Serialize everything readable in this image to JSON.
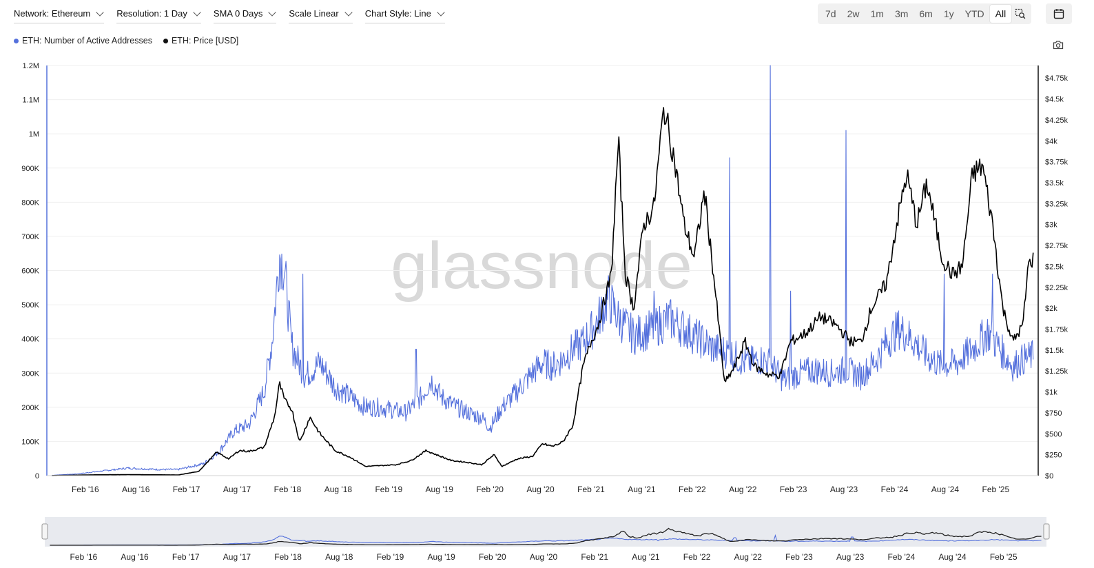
{
  "toolbar": {
    "network": "Network: Ethereum",
    "resolution": "Resolution: 1 Day",
    "sma": "SMA 0 Days",
    "scale": "Scale Linear",
    "style": "Chart Style: Line"
  },
  "range_buttons": [
    "7d",
    "2w",
    "1m",
    "3m",
    "6m",
    "1y",
    "YTD",
    "All"
  ],
  "active_range": "All",
  "icons": {
    "zoom": "zoom-select-icon",
    "calendar": "calendar-icon",
    "camera": "camera-icon"
  },
  "watermark": "glassnode",
  "chart_data": {
    "type": "line",
    "series": [
      {
        "name": "ETH: Number of Active Addresses",
        "color": "#5470dc",
        "axis": "left",
        "points": [
          [
            2015.75,
            1000
          ],
          [
            2016.0,
            5000
          ],
          [
            2016.2,
            12000
          ],
          [
            2016.5,
            22000
          ],
          [
            2016.8,
            18000
          ],
          [
            2017.0,
            18000
          ],
          [
            2017.25,
            35000
          ],
          [
            2017.4,
            70000
          ],
          [
            2017.55,
            130000
          ],
          [
            2017.7,
            150000
          ],
          [
            2017.85,
            250000
          ],
          [
            2017.93,
            400000
          ],
          [
            2018.0,
            650000
          ],
          [
            2018.05,
            600000
          ],
          [
            2018.12,
            380000
          ],
          [
            2018.25,
            290000
          ],
          [
            2018.4,
            330000
          ],
          [
            2018.55,
            260000
          ],
          [
            2018.7,
            230000
          ],
          [
            2018.85,
            200000
          ],
          [
            2019.0,
            200000
          ],
          [
            2019.15,
            190000
          ],
          [
            2019.25,
            185000
          ],
          [
            2019.4,
            230000
          ],
          [
            2019.5,
            280000
          ],
          [
            2019.6,
            230000
          ],
          [
            2019.75,
            200000
          ],
          [
            2019.9,
            180000
          ],
          [
            2020.0,
            170000
          ],
          [
            2020.08,
            140000
          ],
          [
            2020.2,
            200000
          ],
          [
            2020.3,
            230000
          ],
          [
            2020.5,
            300000
          ],
          [
            2020.6,
            330000
          ],
          [
            2020.7,
            320000
          ],
          [
            2020.8,
            340000
          ],
          [
            2020.9,
            370000
          ],
          [
            2021.0,
            390000
          ],
          [
            2021.12,
            440000
          ],
          [
            2021.25,
            520000
          ],
          [
            2021.35,
            460000
          ],
          [
            2021.5,
            410000
          ],
          [
            2021.7,
            430000
          ],
          [
            2021.85,
            460000
          ],
          [
            2022.0,
            430000
          ],
          [
            2022.15,
            400000
          ],
          [
            2022.3,
            370000
          ],
          [
            2022.45,
            360000
          ],
          [
            2022.6,
            330000
          ],
          [
            2022.75,
            340000
          ],
          [
            2022.85,
            330000
          ],
          [
            2022.95,
            290000
          ],
          [
            2023.0,
            280000
          ],
          [
            2023.15,
            300000
          ],
          [
            2023.3,
            310000
          ],
          [
            2023.45,
            300000
          ],
          [
            2023.6,
            310000
          ],
          [
            2023.75,
            290000
          ],
          [
            2023.9,
            340000
          ],
          [
            2024.0,
            390000
          ],
          [
            2024.12,
            430000
          ],
          [
            2024.25,
            400000
          ],
          [
            2024.4,
            350000
          ],
          [
            2024.55,
            320000
          ],
          [
            2024.7,
            330000
          ],
          [
            2024.85,
            370000
          ],
          [
            2025.0,
            420000
          ],
          [
            2025.1,
            380000
          ],
          [
            2025.25,
            320000
          ],
          [
            2025.35,
            340000
          ],
          [
            2025.45,
            350000
          ]
        ],
        "spikes": [
          [
            2018.23,
            590000
          ],
          [
            2019.35,
            370000
          ],
          [
            2021.7,
            540000
          ],
          [
            2022.45,
            930000
          ],
          [
            2022.85,
            1200000
          ],
          [
            2023.05,
            540000
          ],
          [
            2023.6,
            1010000
          ],
          [
            2024.57,
            590000
          ],
          [
            2025.05,
            590000
          ]
        ]
      },
      {
        "name": "ETH: Price [USD]",
        "color": "#000000",
        "axis": "right",
        "points": [
          [
            2015.75,
            1
          ],
          [
            2016.2,
            10
          ],
          [
            2016.5,
            12
          ],
          [
            2016.8,
            10
          ],
          [
            2017.0,
            8
          ],
          [
            2017.2,
            50
          ],
          [
            2017.38,
            280
          ],
          [
            2017.5,
            200
          ],
          [
            2017.6,
            300
          ],
          [
            2017.7,
            290
          ],
          [
            2017.85,
            340
          ],
          [
            2017.95,
            700
          ],
          [
            2018.0,
            1100
          ],
          [
            2018.05,
            900
          ],
          [
            2018.12,
            800
          ],
          [
            2018.2,
            400
          ],
          [
            2018.3,
            700
          ],
          [
            2018.4,
            500
          ],
          [
            2018.55,
            300
          ],
          [
            2018.7,
            220
          ],
          [
            2018.85,
            110
          ],
          [
            2019.0,
            120
          ],
          [
            2019.15,
            130
          ],
          [
            2019.3,
            180
          ],
          [
            2019.45,
            300
          ],
          [
            2019.55,
            250
          ],
          [
            2019.7,
            180
          ],
          [
            2019.85,
            160
          ],
          [
            2020.0,
            130
          ],
          [
            2020.12,
            250
          ],
          [
            2020.2,
            110
          ],
          [
            2020.35,
            200
          ],
          [
            2020.5,
            230
          ],
          [
            2020.6,
            380
          ],
          [
            2020.7,
            350
          ],
          [
            2020.8,
            400
          ],
          [
            2020.9,
            600
          ],
          [
            2021.0,
            1300
          ],
          [
            2021.08,
            1600
          ],
          [
            2021.15,
            1800
          ],
          [
            2021.28,
            2400
          ],
          [
            2021.35,
            4000
          ],
          [
            2021.42,
            2400
          ],
          [
            2021.5,
            2000
          ],
          [
            2021.6,
            3000
          ],
          [
            2021.7,
            3200
          ],
          [
            2021.8,
            4400
          ],
          [
            2021.9,
            3800
          ],
          [
            2022.0,
            3000
          ],
          [
            2022.1,
            2600
          ],
          [
            2022.2,
            3400
          ],
          [
            2022.3,
            2300
          ],
          [
            2022.4,
            1100
          ],
          [
            2022.5,
            1300
          ],
          [
            2022.6,
            1600
          ],
          [
            2022.7,
            1300
          ],
          [
            2022.85,
            1200
          ],
          [
            2022.95,
            1200
          ],
          [
            2023.05,
            1600
          ],
          [
            2023.2,
            1700
          ],
          [
            2023.35,
            1900
          ],
          [
            2023.5,
            1800
          ],
          [
            2023.65,
            1600
          ],
          [
            2023.75,
            1600
          ],
          [
            2023.85,
            2000
          ],
          [
            2024.0,
            2300
          ],
          [
            2024.1,
            3000
          ],
          [
            2024.2,
            3600
          ],
          [
            2024.3,
            3000
          ],
          [
            2024.4,
            3500
          ],
          [
            2024.55,
            2600
          ],
          [
            2024.65,
            2400
          ],
          [
            2024.75,
            2500
          ],
          [
            2024.85,
            3600
          ],
          [
            2024.95,
            3700
          ],
          [
            2025.05,
            3000
          ],
          [
            2025.15,
            2000
          ],
          [
            2025.25,
            1600
          ],
          [
            2025.35,
            1800
          ],
          [
            2025.4,
            2500
          ],
          [
            2025.45,
            2600
          ]
        ]
      }
    ],
    "x_ticks": [
      "Feb '16",
      "Aug '16",
      "Feb '17",
      "Aug '17",
      "Feb '18",
      "Aug '18",
      "Feb '19",
      "Aug '19",
      "Feb '20",
      "Aug '20",
      "Feb '21",
      "Aug '21",
      "Feb '22",
      "Aug '22",
      "Feb '23",
      "Aug '23",
      "Feb '24",
      "Aug '24",
      "Feb '25"
    ],
    "x_tick_values": [
      2016.08,
      2016.58,
      2017.08,
      2017.58,
      2018.08,
      2018.58,
      2019.08,
      2019.58,
      2020.08,
      2020.58,
      2021.08,
      2021.58,
      2022.08,
      2022.58,
      2023.08,
      2023.58,
      2024.08,
      2024.58,
      2025.08
    ],
    "xlim": [
      2015.7,
      2025.5
    ],
    "y_left_ticks": [
      "0",
      "100K",
      "200K",
      "300K",
      "400K",
      "500K",
      "600K",
      "700K",
      "800K",
      "900K",
      "1M",
      "1.1M",
      "1.2M"
    ],
    "ylim_left": [
      0,
      1200000
    ],
    "y_right_ticks": [
      "$0",
      "$250",
      "$500",
      "$750",
      "$1k",
      "$1.25k",
      "$1.5k",
      "$1.75k",
      "$2k",
      "$2.25k",
      "$2.5k",
      "$2.75k",
      "$3k",
      "$3.25k",
      "$3.5k",
      "$3.75k",
      "$4k",
      "$4.25k",
      "$4.5k",
      "$4.75k"
    ],
    "ylim_right": [
      0,
      4900
    ],
    "grid": true,
    "legend_placement": "top-left"
  }
}
